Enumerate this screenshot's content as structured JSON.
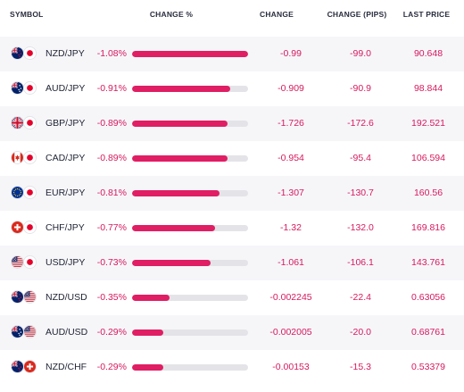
{
  "headers": {
    "symbol": "SYMBOL",
    "change_pct": "CHANGE %",
    "change": "CHANGE",
    "change_pips": "CHANGE (PIPS)",
    "last_price": "LAST PRICE"
  },
  "colors": {
    "negative": "#d6195d",
    "bar_fill": "#e01e63",
    "bar_track": "#e4e4e8",
    "row_shade": "#f6f6f9"
  },
  "rows": [
    {
      "symbol": "NZD/JPY",
      "flags": [
        "nz-flag-icon",
        "jp-flag-icon"
      ],
      "change_pct": "-1.08%",
      "bar_fraction": 1.0,
      "change": "-0.99",
      "change_pips": "-99.0",
      "last_price": "90.648"
    },
    {
      "symbol": "AUD/JPY",
      "flags": [
        "au-flag-icon",
        "jp-flag-icon"
      ],
      "change_pct": "-0.91%",
      "bar_fraction": 0.843,
      "change": "-0.909",
      "change_pips": "-90.9",
      "last_price": "98.844"
    },
    {
      "symbol": "GBP/JPY",
      "flags": [
        "gb-flag-icon",
        "jp-flag-icon"
      ],
      "change_pct": "-0.89%",
      "bar_fraction": 0.824,
      "change": "-1.726",
      "change_pips": "-172.6",
      "last_price": "192.521"
    },
    {
      "symbol": "CAD/JPY",
      "flags": [
        "ca-flag-icon",
        "jp-flag-icon"
      ],
      "change_pct": "-0.89%",
      "bar_fraction": 0.824,
      "change": "-0.954",
      "change_pips": "-95.4",
      "last_price": "106.594"
    },
    {
      "symbol": "EUR/JPY",
      "flags": [
        "eu-flag-icon",
        "jp-flag-icon"
      ],
      "change_pct": "-0.81%",
      "bar_fraction": 0.75,
      "change": "-1.307",
      "change_pips": "-130.7",
      "last_price": "160.56"
    },
    {
      "symbol": "CHF/JPY",
      "flags": [
        "ch-flag-icon",
        "jp-flag-icon"
      ],
      "change_pct": "-0.77%",
      "bar_fraction": 0.713,
      "change": "-1.32",
      "change_pips": "-132.0",
      "last_price": "169.816"
    },
    {
      "symbol": "USD/JPY",
      "flags": [
        "us-flag-icon",
        "jp-flag-icon"
      ],
      "change_pct": "-0.73%",
      "bar_fraction": 0.676,
      "change": "-1.061",
      "change_pips": "-106.1",
      "last_price": "143.761"
    },
    {
      "symbol": "NZD/USD",
      "flags": [
        "nz-flag-icon",
        "us-flag-icon"
      ],
      "change_pct": "-0.35%",
      "bar_fraction": 0.324,
      "change": "-0.002245",
      "change_pips": "-22.4",
      "last_price": "0.63056"
    },
    {
      "symbol": "AUD/USD",
      "flags": [
        "au-flag-icon",
        "us-flag-icon"
      ],
      "change_pct": "-0.29%",
      "bar_fraction": 0.269,
      "change": "-0.002005",
      "change_pips": "-20.0",
      "last_price": "0.68761"
    },
    {
      "symbol": "NZD/CHF",
      "flags": [
        "nz-flag-icon",
        "ch-flag-icon"
      ],
      "change_pct": "-0.29%",
      "bar_fraction": 0.269,
      "change": "-0.00153",
      "change_pips": "-15.3",
      "last_price": "0.53379"
    }
  ]
}
